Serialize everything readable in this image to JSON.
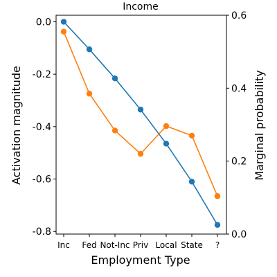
{
  "chart_data": {
    "type": "line",
    "title": "Income",
    "xlabel": "Employment Type",
    "ylabel_left": "Activation magnitude",
    "ylabel_right": "Marginal probability",
    "categories": [
      "Inc",
      "Fed",
      "Not-Inc",
      "Priv",
      "Local",
      "State",
      "?"
    ],
    "ylim_left": [
      -0.81,
      0.025
    ],
    "ylim_right": [
      0.0,
      0.6
    ],
    "yticks_left": [
      0.0,
      -0.2,
      -0.4,
      -0.6,
      -0.8
    ],
    "yticks_left_labels": [
      "0.0",
      "-0.2",
      "-0.4",
      "-0.6",
      "-0.8"
    ],
    "yticks_right": [
      0.0,
      0.2,
      0.4,
      0.6
    ],
    "yticks_right_labels": [
      "0.0",
      "0.2",
      "0.4",
      "0.6"
    ],
    "grid": false,
    "legend": "none",
    "series": [
      {
        "axis": "left",
        "color": "#1f77b4",
        "values": [
          0.0,
          -0.105,
          -0.216,
          -0.335,
          -0.465,
          -0.61,
          -0.775
        ]
      },
      {
        "axis": "right",
        "color": "#ff7f0e",
        "values": [
          0.555,
          0.385,
          0.284,
          0.22,
          0.296,
          0.27,
          0.104
        ]
      }
    ]
  }
}
